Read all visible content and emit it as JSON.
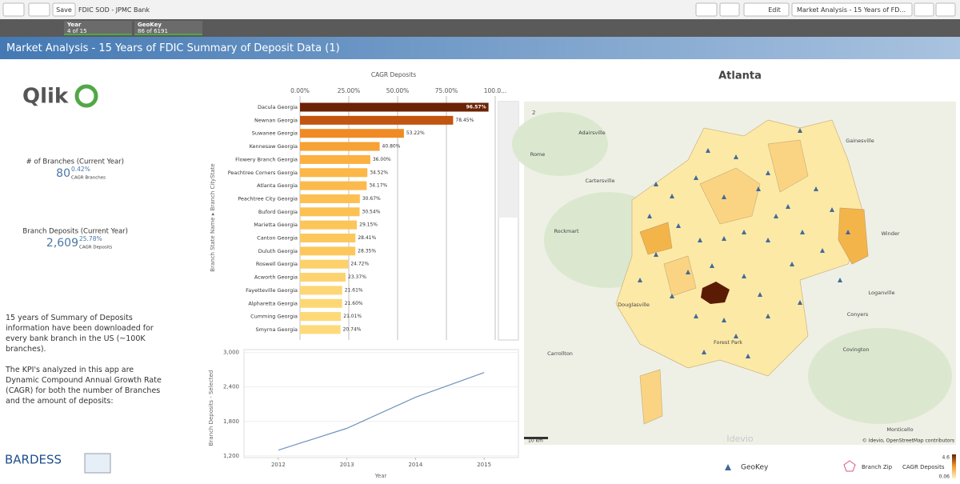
{
  "toolbar": {
    "save": "Save",
    "app_name": "FDIC SOD - JPMC Bank",
    "edit": "Edit",
    "sheet_name": "Market Analysis - 15 Years of FD..."
  },
  "selections": [
    {
      "field": "Year",
      "state": "4 of 15"
    },
    {
      "field": "GeoKey",
      "state": "86 of 6191"
    }
  ],
  "sheet_title": "Market Analysis - 15 Years of FDIC Summary of Deposit Data (1)",
  "logos": {
    "qlik": "Qlik",
    "bardess": "BARDESS"
  },
  "kpis": [
    {
      "label": "# of Branches (Current Year)",
      "value": "80",
      "cagr": "0.42%",
      "cagr_label": "CAGR Branches"
    },
    {
      "label": "Branch Deposits (Current Year)",
      "value": "2,609",
      "cagr": "25.78%",
      "cagr_label": "CAGR Deposits"
    }
  ],
  "description": [
    "15 years of Summary of Deposits information have been downloaded for every bank branch in the US (~100K branches).",
    "The KPI's analyzed in this app are Dynamic Compound Annual Growth Rate (CAGR) for both the number of Branches and the amount of deposits:"
  ],
  "bar_chart": {
    "type": "bar",
    "x_label": "CAGR Deposits",
    "y_label": "Branch State Name ▸ Branch CityState",
    "categories": [
      "Dacula Georgia",
      "Newnan Georgia",
      "Suwanee Georgia",
      "Kennesaw Georgia",
      "Flowery Branch Georgia",
      "Peachtree Corners Georgia",
      "Atlanta Georgia",
      "Peachtree City Georgia",
      "Buford Georgia",
      "Marietta Georgia",
      "Canton Georgia",
      "Duluth Georgia",
      "Roswell Georgia",
      "Acworth Georgia",
      "Fayetteville Georgia",
      "Alpharetta Georgia",
      "Cumming Georgia",
      "Smyrna Georgia"
    ],
    "values": [
      96.57,
      78.45,
      53.22,
      40.8,
      36.0,
      34.52,
      34.17,
      30.67,
      30.54,
      29.15,
      28.41,
      28.35,
      24.72,
      23.37,
      21.61,
      21.6,
      21.01,
      20.74
    ],
    "value_labels": [
      "96.57%",
      "78.45%",
      "53.22%",
      "40.80%",
      "36.00%",
      "34.52%",
      "34.17%",
      "30.67%",
      "30.54%",
      "29.15%",
      "28.41%",
      "28.35%",
      "24.72%",
      "23.37%",
      "21.61%",
      "21.60%",
      "21.01%",
      "20.74%"
    ],
    "colors": [
      "#6b2305",
      "#c2550f",
      "#f08a24",
      "#f7a234",
      "#fbb040",
      "#fbb747",
      "#fbba4b",
      "#fcc052",
      "#fcc153",
      "#fcc55a",
      "#fcc75d",
      "#fcc85e",
      "#fdd069",
      "#fdd36f",
      "#fdd776",
      "#fdd776",
      "#fed978",
      "#feda7b"
    ],
    "xlim": [
      0,
      100
    ],
    "xticks": [
      {
        "value": 0,
        "label": "0.00%"
      },
      {
        "value": 25,
        "label": "25.00%"
      },
      {
        "value": 50,
        "label": "50.00%"
      },
      {
        "value": 75,
        "label": "75.00%"
      },
      {
        "value": 100,
        "label": "100.0..."
      }
    ],
    "grid": true
  },
  "line_chart": {
    "type": "line",
    "x_label": "Year",
    "y_label": "Branch Deposits - Selected",
    "x": [
      2012,
      2013,
      2014,
      2015
    ],
    "values": [
      1300,
      1680,
      2220,
      2650
    ],
    "color": "#6f93bd",
    "xlim": [
      2011.5,
      2015.5
    ],
    "xticks": [
      2012,
      2013,
      2014,
      2015
    ],
    "ylim": [
      1170,
      3050
    ],
    "yticks": [
      {
        "value": 1200,
        "label": "1,200"
      },
      {
        "value": 1800,
        "label": "1,800"
      },
      {
        "value": 2400,
        "label": "2,400"
      },
      {
        "value": 3000,
        "label": "3,000"
      }
    ]
  },
  "map": {
    "title": "Atlanta",
    "places": [
      "Adairsville",
      "Gainesville",
      "Rome",
      "Cartersville",
      "Rockmart",
      "Winder",
      "Loganville",
      "Douglasville",
      "Conyers",
      "Carrollton",
      "Forest Park",
      "Covington",
      "Monticello"
    ],
    "cluster_count": "2",
    "scale": "10 km",
    "watermark": "Idevio",
    "attribution": "© Idevio, OpenStreetMap contributors"
  },
  "legend": {
    "geokey": "GeoKey",
    "branch_zip": "Branch Zip",
    "cagr_title": "CAGR Deposits",
    "max": "4.6",
    "min": "0.06"
  }
}
